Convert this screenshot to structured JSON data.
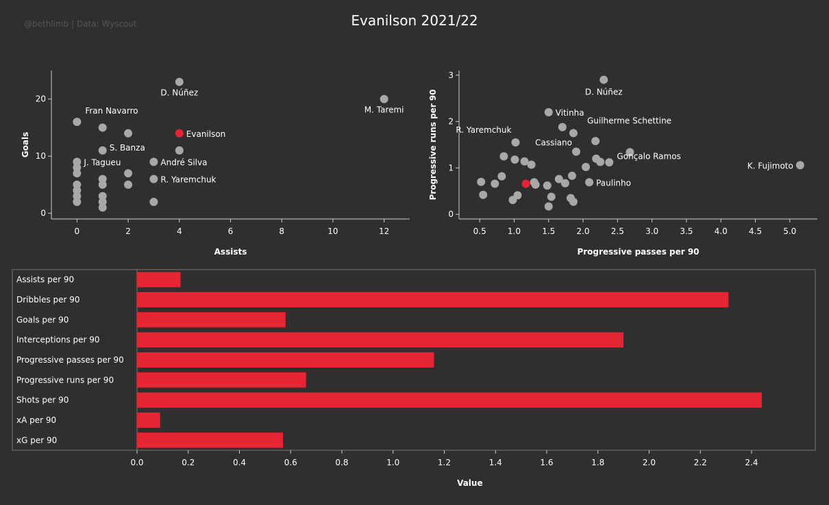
{
  "header": {
    "credit": "@bethlimb | Data: Wyscout",
    "title": "Evanilson 2021/22"
  },
  "colors": {
    "background": "#2f2f2f",
    "highlight": "#e52533",
    "player": "#a8a8a8",
    "bar": "#e52533",
    "text": "#ffffff",
    "axis": "#d0d0d0"
  },
  "chart_data": [
    {
      "type": "scatter",
      "xlabel": "Assists",
      "ylabel": "Goals",
      "xlim": [
        -1,
        13
      ],
      "ylim": [
        -1,
        25
      ],
      "xticks": [
        0,
        2,
        4,
        6,
        8,
        10,
        12
      ],
      "yticks": [
        0,
        10,
        20
      ],
      "points": [
        {
          "x": 4,
          "y": 23,
          "label": "D. Núñez",
          "highlight": false
        },
        {
          "x": 12,
          "y": 20,
          "label": "M. Taremi",
          "highlight": false
        },
        {
          "x": 0,
          "y": 16,
          "label": "Fran Navarro",
          "highlight": false
        },
        {
          "x": 1,
          "y": 15,
          "label": "",
          "highlight": false
        },
        {
          "x": 2,
          "y": 14,
          "label": "",
          "highlight": false
        },
        {
          "x": 4,
          "y": 14,
          "label": "Evanilson",
          "highlight": true
        },
        {
          "x": 1,
          "y": 11,
          "label": "S. Banza",
          "highlight": false
        },
        {
          "x": 4,
          "y": 11,
          "label": "",
          "highlight": false
        },
        {
          "x": 0,
          "y": 9,
          "label": "J. Tagueu",
          "highlight": false
        },
        {
          "x": 3,
          "y": 9,
          "label": "André Silva",
          "highlight": false
        },
        {
          "x": 0,
          "y": 8,
          "label": "",
          "highlight": false
        },
        {
          "x": 0,
          "y": 7,
          "label": "",
          "highlight": false
        },
        {
          "x": 2,
          "y": 7,
          "label": "",
          "highlight": false
        },
        {
          "x": 1,
          "y": 6,
          "label": "",
          "highlight": false
        },
        {
          "x": 3,
          "y": 6,
          "label": "R. Yaremchuk",
          "highlight": false
        },
        {
          "x": 0,
          "y": 5,
          "label": "",
          "highlight": false
        },
        {
          "x": 1,
          "y": 5,
          "label": "",
          "highlight": false
        },
        {
          "x": 2,
          "y": 5,
          "label": "",
          "highlight": false
        },
        {
          "x": 0,
          "y": 4,
          "label": "",
          "highlight": false
        },
        {
          "x": 0,
          "y": 3,
          "label": "",
          "highlight": false
        },
        {
          "x": 1,
          "y": 3,
          "label": "",
          "highlight": false
        },
        {
          "x": 0,
          "y": 2,
          "label": "",
          "highlight": false
        },
        {
          "x": 1,
          "y": 2,
          "label": "",
          "highlight": false
        },
        {
          "x": 3,
          "y": 2,
          "label": "",
          "highlight": false
        },
        {
          "x": 1,
          "y": 1,
          "label": "",
          "highlight": false
        }
      ]
    },
    {
      "type": "scatter",
      "xlabel": "Progressive passes per 90",
      "ylabel": "Progressive runs per 90",
      "xlim": [
        0.2,
        5.4
      ],
      "ylim": [
        -0.1,
        3.1
      ],
      "xticks": [
        0.5,
        1.0,
        1.5,
        2.0,
        2.5,
        3.0,
        3.5,
        4.0,
        4.5,
        5.0
      ],
      "yticks": [
        0,
        1,
        2,
        3
      ],
      "points": [
        {
          "x": 2.3,
          "y": 2.9,
          "label": "D. Núñez",
          "highlight": false
        },
        {
          "x": 1.5,
          "y": 2.2,
          "label": "Vitinha",
          "highlight": false
        },
        {
          "x": 1.7,
          "y": 1.88,
          "label": "",
          "highlight": false
        },
        {
          "x": 1.86,
          "y": 1.75,
          "label": "Guilherme Schettine",
          "highlight": false
        },
        {
          "x": 1.02,
          "y": 1.55,
          "label": "R. Yaremchuk",
          "highlight": false
        },
        {
          "x": 2.18,
          "y": 1.58,
          "label": "",
          "highlight": false
        },
        {
          "x": 1.9,
          "y": 1.35,
          "label": "Cassiano",
          "highlight": false
        },
        {
          "x": 2.68,
          "y": 1.34,
          "label": "Gonçalo Ramos",
          "highlight": false
        },
        {
          "x": 0.85,
          "y": 1.25,
          "label": "",
          "highlight": false
        },
        {
          "x": 1.01,
          "y": 1.18,
          "label": "",
          "highlight": false
        },
        {
          "x": 1.15,
          "y": 1.14,
          "label": "",
          "highlight": false
        },
        {
          "x": 2.19,
          "y": 1.2,
          "label": "",
          "highlight": false
        },
        {
          "x": 2.25,
          "y": 1.13,
          "label": "",
          "highlight": false
        },
        {
          "x": 2.38,
          "y": 1.12,
          "label": "",
          "highlight": false
        },
        {
          "x": 1.25,
          "y": 1.07,
          "label": "",
          "highlight": false
        },
        {
          "x": 2.04,
          "y": 1.02,
          "label": "",
          "highlight": false
        },
        {
          "x": 5.15,
          "y": 1.06,
          "label": "K. Fujimoto",
          "highlight": false
        },
        {
          "x": 0.82,
          "y": 0.82,
          "label": "",
          "highlight": false
        },
        {
          "x": 1.84,
          "y": 0.83,
          "label": "",
          "highlight": false
        },
        {
          "x": 1.65,
          "y": 0.76,
          "label": "",
          "highlight": false
        },
        {
          "x": 0.52,
          "y": 0.7,
          "label": "",
          "highlight": false
        },
        {
          "x": 0.72,
          "y": 0.66,
          "label": "",
          "highlight": false
        },
        {
          "x": 1.29,
          "y": 0.69,
          "label": "",
          "highlight": false
        },
        {
          "x": 2.09,
          "y": 0.69,
          "label": "Paulinho",
          "highlight": false
        },
        {
          "x": 1.74,
          "y": 0.67,
          "label": "",
          "highlight": false
        },
        {
          "x": 1.31,
          "y": 0.64,
          "label": "",
          "highlight": false
        },
        {
          "x": 1.17,
          "y": 0.66,
          "label": "",
          "highlight": false,
          "highlight_red": true
        },
        {
          "x": 1.48,
          "y": 0.62,
          "label": "",
          "highlight": false
        },
        {
          "x": 0.55,
          "y": 0.42,
          "label": "",
          "highlight": false
        },
        {
          "x": 1.05,
          "y": 0.41,
          "label": "",
          "highlight": false
        },
        {
          "x": 1.54,
          "y": 0.38,
          "label": "",
          "highlight": false
        },
        {
          "x": 0.98,
          "y": 0.31,
          "label": "",
          "highlight": false
        },
        {
          "x": 1.82,
          "y": 0.35,
          "label": "",
          "highlight": false
        },
        {
          "x": 1.86,
          "y": 0.27,
          "label": "",
          "highlight": false
        },
        {
          "x": 1.5,
          "y": 0.17,
          "label": "",
          "highlight": false
        }
      ]
    },
    {
      "type": "bar",
      "orientation": "horizontal",
      "xlabel": "Value",
      "xlim": [
        0,
        2.55
      ],
      "xticks": [
        0.0,
        0.2,
        0.4,
        0.6,
        0.8,
        1.0,
        1.2,
        1.4,
        1.6,
        1.8,
        2.0,
        2.2,
        2.4
      ],
      "categories": [
        "Assists per 90",
        "Dribbles per 90",
        "Goals per 90",
        "Interceptions per 90",
        "Progressive passes per 90",
        "Progressive runs per 90",
        "Shots per 90",
        "xA per 90",
        "xG per 90"
      ],
      "values": [
        0.17,
        2.31,
        0.58,
        1.9,
        1.16,
        0.66,
        2.44,
        0.09,
        0.57
      ]
    }
  ]
}
